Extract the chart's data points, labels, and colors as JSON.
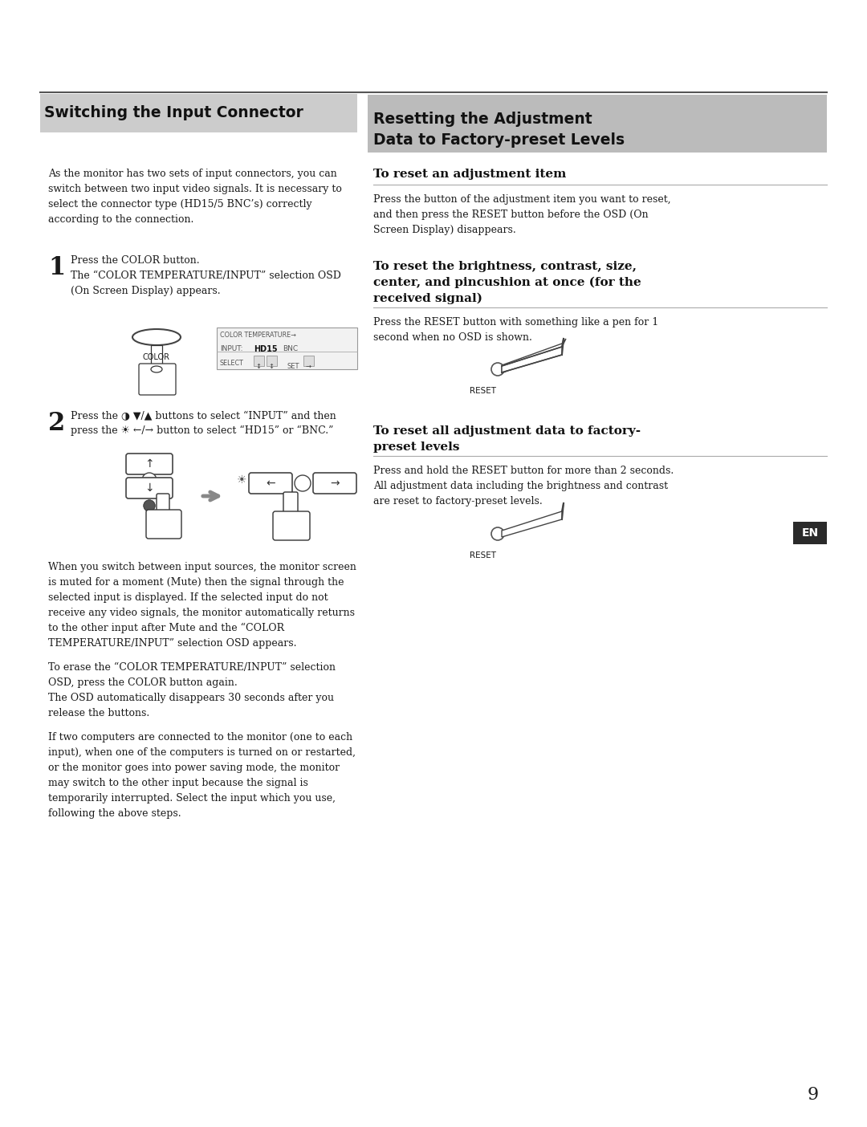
{
  "page_bg": "#ffffff",
  "page_number": "9",
  "body_color": "#1a1a1a",
  "header_color": "#111111",
  "left_header_text": "Switching the Input Connector",
  "left_header_bg": "#cccccc",
  "right_header_line1": "Resetting the Adjustment",
  "right_header_line2": "Data to Factory-preset Levels",
  "right_header_bg": "#bbbbbb",
  "en_box_bg": "#2a2a2a",
  "rule_color": "#555555",
  "body_font_size": 9.0,
  "header_font_size": 13.5,
  "subheader_font_size": 11.0,
  "step_num_font_size": 18,
  "intro_text": "As the monitor has two sets of input connectors, you can\nswitch between two input video signals. It is necessary to\nselect the connector type (HD15/5 BNC’s) correctly\naccording to the connection.",
  "step1_text": "Press the COLOR button.\nThe “COLOR TEMPERATURE/INPUT” selection OSD\n(On Screen Display) appears.",
  "step2_line1": "Press the ◑ ▼/▲ buttons to select “INPUT” and then",
  "step2_line2": "press the ☀ ←/→ button to select “HD15” or “BNC.”",
  "para_mute": "When you switch between input sources, the monitor screen\nis muted for a moment (Mute) then the signal through the\nselected input is displayed. If the selected input do not\nreceive any video signals, the monitor automatically returns\nto the other input after Mute and the “COLOR\nTEMPERATURE/INPUT” selection OSD appears.",
  "para_erase": "To erase the “COLOR TEMPERATURE/INPUT” selection\nOSD, press the COLOR button again.\nThe OSD automatically disappears 30 seconds after you\nrelease the buttons.",
  "para_two": "If two computers are connected to the monitor (one to each\ninput), when one of the computers is turned on or restarted,\nor the monitor goes into power saving mode, the monitor\nmay switch to the other input because the signal is\ntemporarily interrupted. Select the input which you use,\nfollowing the above steps.",
  "r_sub1": "To reset an adjustment item",
  "r_para1": "Press the button of the adjustment item you want to reset,\nand then press the RESET button before the OSD (On\nScreen Display) disappears.",
  "r_sub2_line1": "To reset the brightness, contrast, size,",
  "r_sub2_line2": "center, and pincushion at once (for the",
  "r_sub2_line3": "received signal)",
  "r_para2": "Press the RESET button with something like a pen for 1\nsecond when no OSD is shown.",
  "r_sub3_line1": "To reset all adjustment data to factory-",
  "r_sub3_line2": "preset levels",
  "r_para3": "Press and hold the RESET button for more than 2 seconds.\nAll adjustment data including the brightness and contrast\nare reset to factory-preset levels."
}
